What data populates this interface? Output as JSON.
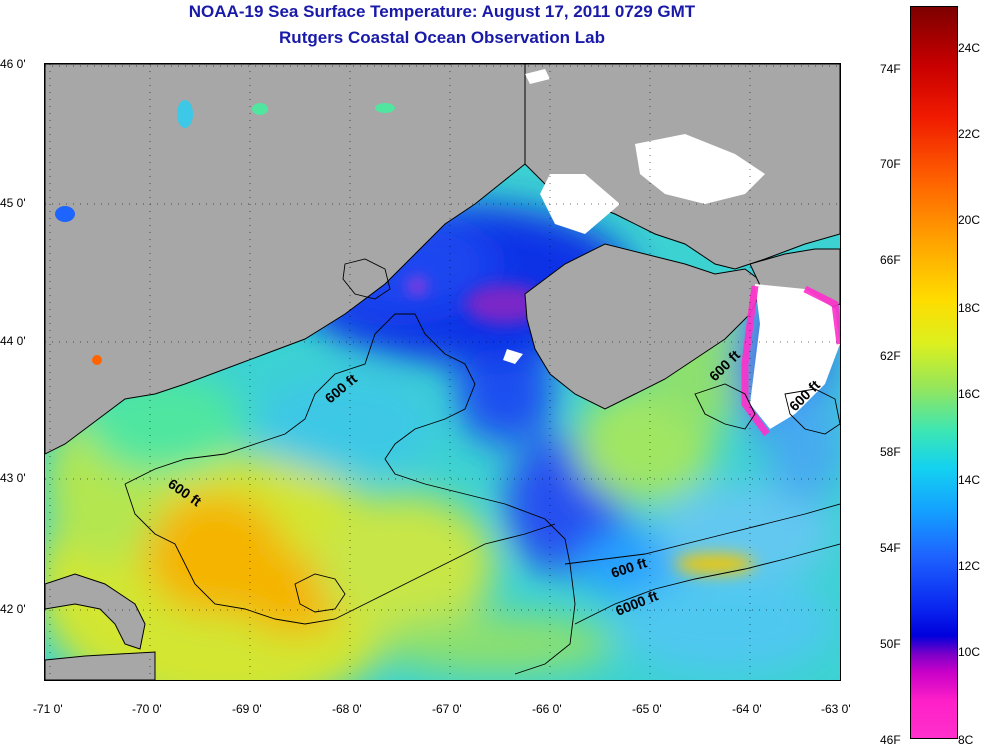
{
  "header": {
    "title_line1": "NOAA-19 Sea Surface Temperature:  August 17, 2011 0729 GMT",
    "title_line2": "Rutgers Coastal Ocean Observation Lab"
  },
  "map": {
    "latitude_labels": [
      "46 0'",
      "45 0'",
      "44 0'",
      "43 0'",
      "42 0'"
    ],
    "longitude_labels": [
      "-71 0'",
      "-70 0'",
      "-69 0'",
      "-68 0'",
      "-67 0'",
      "-66 0'",
      "-65 0'",
      "-64 0'",
      "-63 0'"
    ],
    "contour_labels": [
      "600 ft",
      "600 ft",
      "600 ft",
      "600 ft",
      "600 ft",
      "6000 ft"
    ],
    "colors": {
      "land": "#a7a7a7",
      "cloud": "#ffffff",
      "coastline": "#000000"
    }
  },
  "colorbar": {
    "fahrenheit_labels": [
      "74F",
      "70F",
      "66F",
      "62F",
      "58F",
      "54F",
      "50F",
      "46F"
    ],
    "celsius_labels": [
      "24C",
      "22C",
      "20C",
      "18C",
      "16C",
      "14C",
      "12C",
      "10C",
      "8C"
    ]
  }
}
